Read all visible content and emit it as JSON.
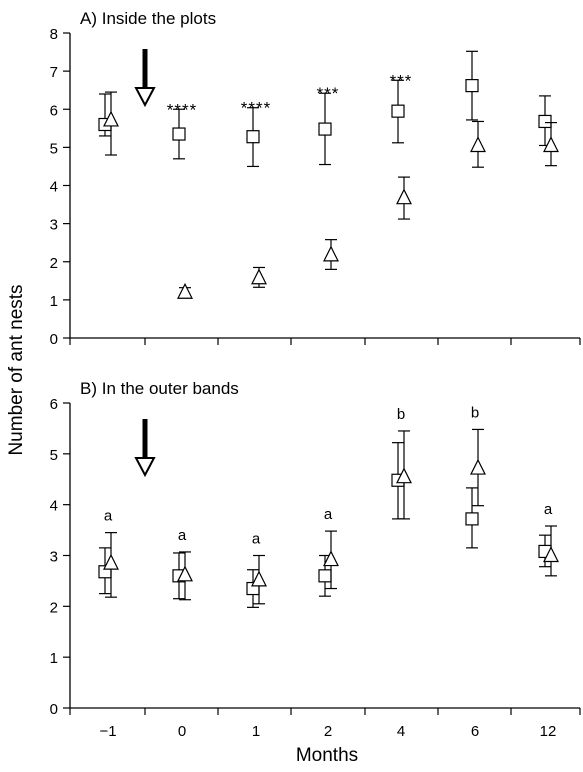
{
  "chart_data": [
    {
      "type": "scatter",
      "title": "A) Inside the plots",
      "xlabel": "Months",
      "ylabel": "Number of ant nests",
      "categories": [
        "−1",
        "0",
        "1",
        "2",
        "4",
        "6",
        "12"
      ],
      "ylim": [
        0,
        8
      ],
      "yticks": [
        "0",
        "1",
        "2",
        "3",
        "4",
        "5",
        "6",
        "7",
        "8"
      ],
      "grid": false,
      "series": [
        {
          "marker": "square",
          "values": [
            5.6,
            5.35,
            5.28,
            5.48,
            5.95,
            6.62,
            5.68
          ],
          "err_low": [
            5.3,
            4.7,
            4.5,
            4.55,
            5.12,
            5.72,
            5.05
          ],
          "err_high": [
            6.4,
            6.0,
            6.04,
            6.42,
            6.76,
            7.52,
            6.35
          ]
        },
        {
          "marker": "triangle",
          "values": [
            5.72,
            1.2,
            1.58,
            2.18,
            3.68,
            5.05,
            5.05
          ],
          "err_low": [
            4.8,
            1.05,
            1.33,
            1.8,
            3.12,
            4.48,
            4.52
          ],
          "err_high": [
            6.45,
            1.32,
            1.85,
            2.58,
            4.22,
            5.68,
            5.65
          ]
        }
      ],
      "annotations": [
        "",
        "****",
        "****",
        "***",
        "***",
        "",
        ""
      ],
      "treatment_arrow_after": "−1"
    },
    {
      "type": "scatter",
      "title": "B) In the outer bands",
      "xlabel": "Months",
      "ylabel": "Number of ant nests",
      "categories": [
        "−1",
        "0",
        "1",
        "2",
        "4",
        "6",
        "12"
      ],
      "ylim": [
        0,
        6
      ],
      "yticks": [
        "0",
        "1",
        "2",
        "3",
        "4",
        "5",
        "6"
      ],
      "grid": false,
      "series": [
        {
          "marker": "square",
          "values": [
            2.68,
            2.6,
            2.35,
            2.6,
            4.48,
            3.72,
            3.08
          ],
          "err_low": [
            2.25,
            2.15,
            1.98,
            2.2,
            3.72,
            3.15,
            2.78
          ],
          "err_high": [
            3.15,
            3.05,
            2.72,
            3.0,
            5.22,
            4.33,
            3.4
          ]
        },
        {
          "marker": "triangle",
          "values": [
            2.85,
            2.62,
            2.52,
            2.92,
            4.55,
            4.72,
            3.0
          ],
          "err_low": [
            2.18,
            2.13,
            2.05,
            2.35,
            3.72,
            3.98,
            2.6
          ],
          "err_high": [
            3.45,
            3.07,
            3.0,
            3.48,
            5.45,
            5.48,
            3.58
          ]
        }
      ],
      "annotations": [
        "a",
        "a",
        "a",
        "a",
        "b",
        "b",
        "a"
      ],
      "treatment_arrow_after": "−1"
    }
  ]
}
